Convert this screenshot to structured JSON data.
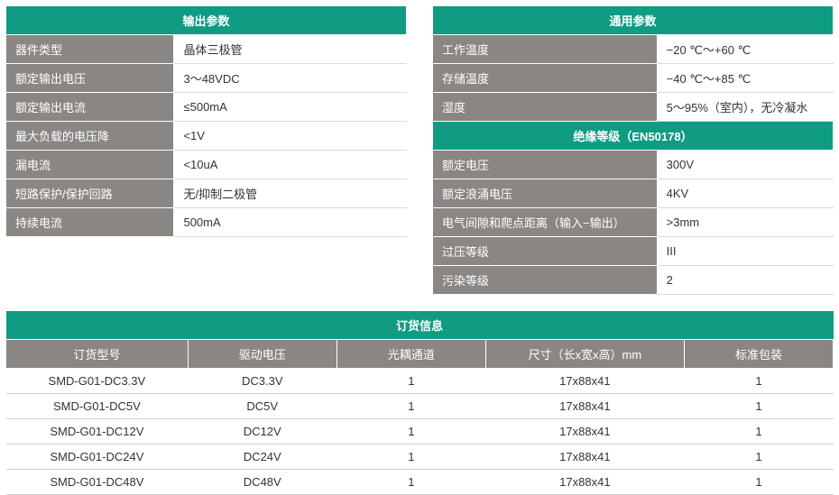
{
  "colors": {
    "teal": "#109b83",
    "gray_header": "#8a8683",
    "row_border": "#cfcfcf",
    "val_border": "#d9d9d9",
    "text": "#333333",
    "white": "#ffffff"
  },
  "output_params": {
    "title": "输出参数",
    "rows": [
      {
        "label": "器件类型",
        "value": "晶体三极管"
      },
      {
        "label": "额定输出电压",
        "value": "3～48VDC"
      },
      {
        "label": "额定输出电流",
        "value": "≤500mA"
      },
      {
        "label": "最大负载的电压降",
        "value": "<1V"
      },
      {
        "label": "漏电流",
        "value": "<10uA"
      },
      {
        "label": "短路保护/保护回路",
        "value": "无/抑制二极管"
      },
      {
        "label": "持续电流",
        "value": "500mA"
      }
    ]
  },
  "general_params": {
    "title": "通用参数",
    "rows": [
      {
        "label": "工作温度",
        "value": "−20 ℃～+60 ℃"
      },
      {
        "label": "存储温度",
        "value": "−40 ℃～+85 ℃"
      },
      {
        "label": "湿度",
        "value": "5～95%（室内），无冷凝水"
      }
    ]
  },
  "insulation": {
    "title": "绝缘等级（EN50178）",
    "rows": [
      {
        "label": "额定电压",
        "value": "300V"
      },
      {
        "label": "额定浪涌电压",
        "value": "4KV"
      },
      {
        "label": "电气间隙和爬点距离（输入−输出）",
        "value": ">3mm"
      },
      {
        "label": "过压等级",
        "value": "III"
      },
      {
        "label": "污染等级",
        "value": "2"
      }
    ]
  },
  "order_info": {
    "title": "订货信息",
    "columns": [
      "订货型号",
      "驱动电压",
      "光耦通道",
      "尺寸（长x宽x高）mm",
      "标准包装"
    ],
    "col_widths": [
      "22%",
      "18%",
      "18%",
      "24%",
      "18%"
    ],
    "rows": [
      [
        "SMD-G01-DC3.3V",
        "DC3.3V",
        "1",
        "17x88x41",
        "1"
      ],
      [
        "SMD-G01-DC5V",
        "DC5V",
        "1",
        "17x88x41",
        "1"
      ],
      [
        "SMD-G01-DC12V",
        "DC12V",
        "1",
        "17x88x41",
        "1"
      ],
      [
        "SMD-G01-DC24V",
        "DC24V",
        "1",
        "17x88x41",
        "1"
      ],
      [
        "SMD-G01-DC48V",
        "DC48V",
        "1",
        "17x88x41",
        "1"
      ]
    ]
  }
}
